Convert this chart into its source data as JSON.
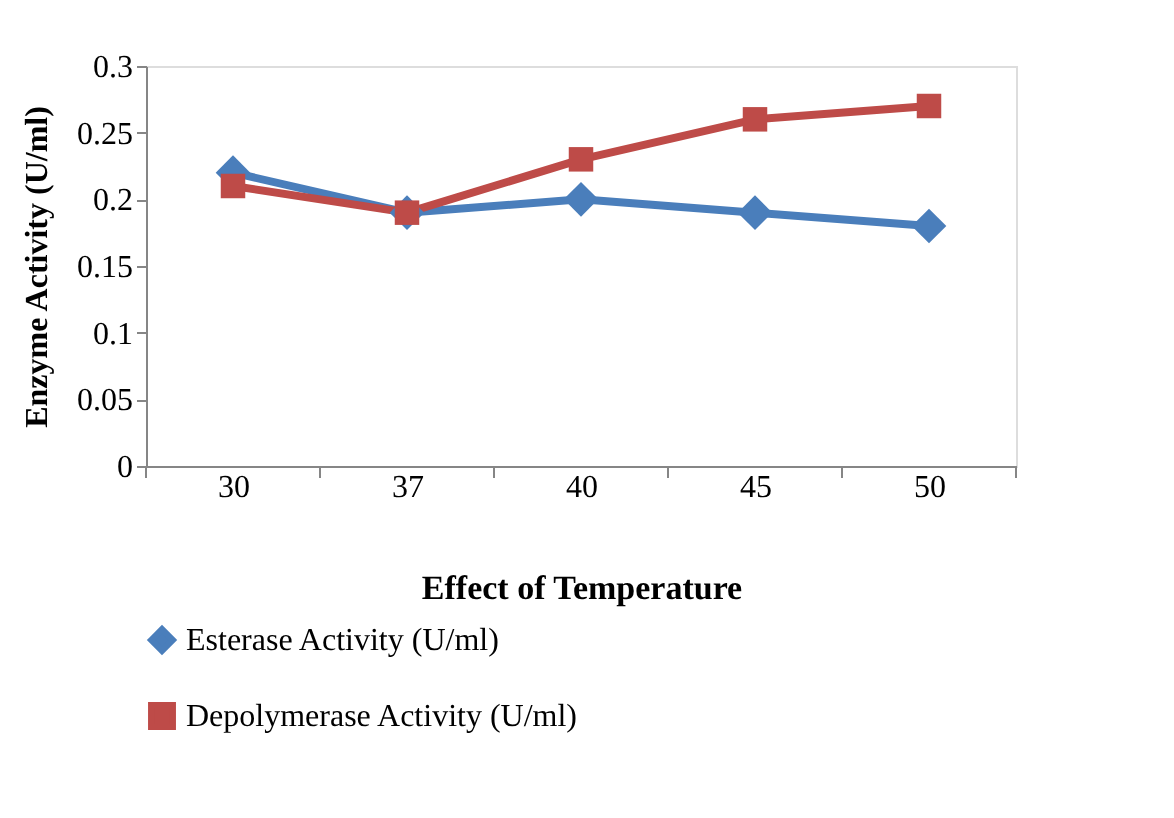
{
  "chart_data": {
    "type": "line",
    "xlabel": "Effect of Temperature",
    "ylabel": "Enzyme Activity (U/ml)",
    "categories": [
      "30",
      "37",
      "40",
      "45",
      "50"
    ],
    "series": [
      {
        "name": "Esterase Activity (U/ml)",
        "color": "#4a7ebb",
        "marker": "diamond",
        "values": [
          0.22,
          0.19,
          0.2,
          0.19,
          0.18
        ]
      },
      {
        "name": "Depolymerase Activity (U/ml)",
        "color": "#be4b48",
        "marker": "square",
        "values": [
          0.21,
          0.19,
          0.23,
          0.26,
          0.27
        ]
      }
    ],
    "ylim": [
      0,
      0.3
    ],
    "yticks": [
      0,
      0.05,
      0.1,
      0.15,
      0.2,
      0.25,
      0.3
    ],
    "grid": false,
    "legend": "bottom",
    "line_style": "solid"
  }
}
